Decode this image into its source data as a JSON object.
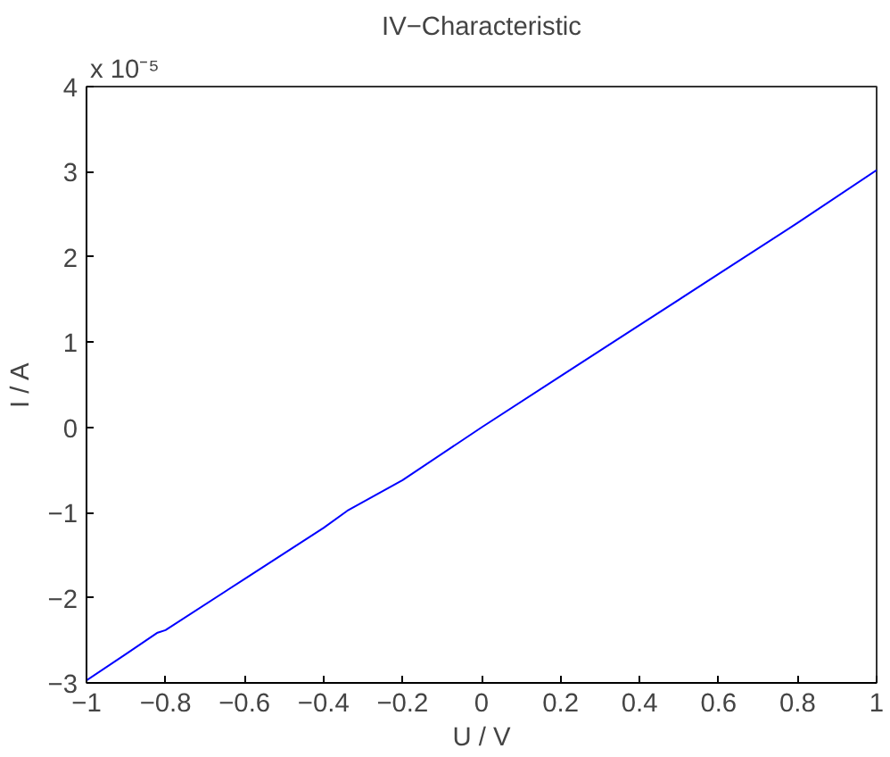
{
  "chart_data": {
    "type": "line",
    "title": "IV−Characteristic",
    "xlabel": "U / V",
    "ylabel": "I / A",
    "annotations": [
      "x 10⁻⁵"
    ],
    "x": [
      -1,
      -0.9,
      -0.82,
      -0.8,
      -0.6,
      -0.4,
      -0.34,
      -0.2,
      0,
      0.2,
      0.4,
      0.6,
      0.8,
      1
    ],
    "series": [
      {
        "color": "#0000ff",
        "values": [
          -2.97,
          -2.66,
          -2.41,
          -2.38,
          -1.78,
          -1.18,
          -0.98,
          -0.62,
          0.0,
          0.6,
          1.2,
          1.8,
          2.4,
          3.02
        ]
      }
    ],
    "xlim": [
      -1,
      1
    ],
    "ylim": [
      -3,
      4
    ],
    "xticks": [
      {
        "value": -1,
        "label": "−1"
      },
      {
        "value": -0.8,
        "label": "−0.8"
      },
      {
        "value": -0.6,
        "label": "−0.6"
      },
      {
        "value": -0.4,
        "label": "−0.4"
      },
      {
        "value": -0.2,
        "label": "−0.2"
      },
      0,
      0.2,
      0.4,
      0.6,
      0.8,
      1
    ],
    "yticks": [
      {
        "value": -3,
        "label": "−3"
      },
      {
        "value": -2,
        "label": "−2"
      },
      {
        "value": -1,
        "label": "−1"
      },
      0,
      1,
      2,
      3,
      4
    ],
    "grid": false,
    "marker": "none",
    "line_style": "solid"
  }
}
